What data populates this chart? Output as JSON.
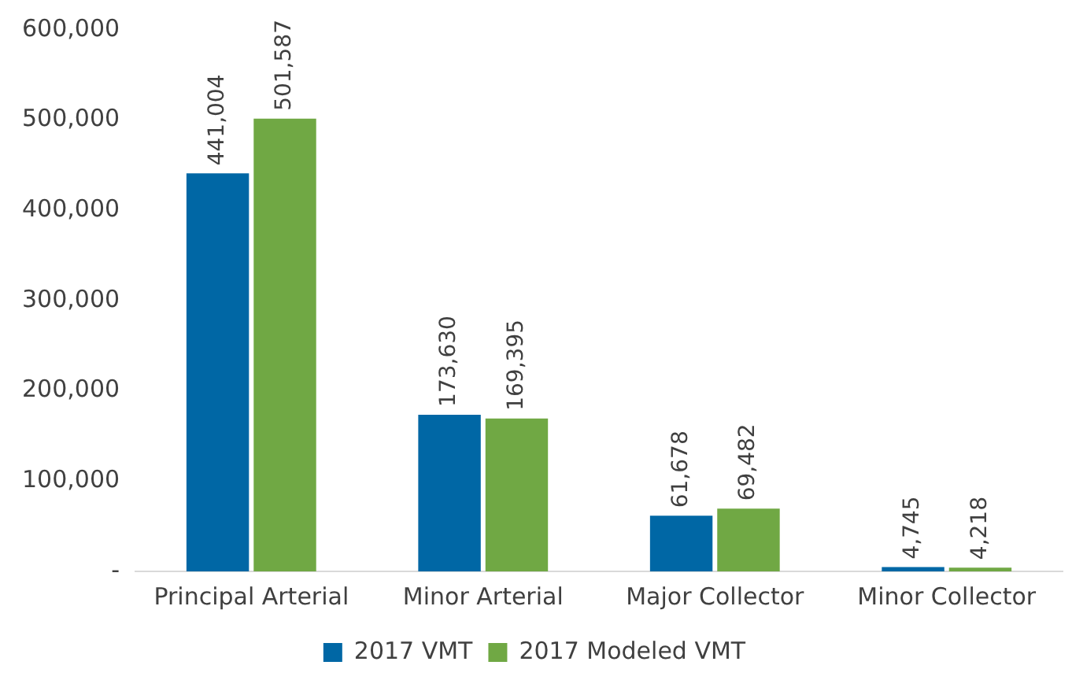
{
  "chart_data": {
    "type": "bar",
    "categories": [
      "Principal Arterial",
      "Minor Arterial",
      "Major Collector",
      "Minor Collector"
    ],
    "series": [
      {
        "name": "2017 VMT",
        "color": "#0067a5",
        "values": [
          441004,
          173630,
          61678,
          4745
        ],
        "value_labels": [
          "441,004",
          "173,630",
          "61,678",
          "4,745"
        ]
      },
      {
        "name": "2017 Modeled VMT",
        "color": "#70a844",
        "values": [
          501587,
          169395,
          69482,
          4218
        ],
        "value_labels": [
          "501,587",
          "169,395",
          "69,482",
          "4,218"
        ]
      }
    ],
    "ylim": [
      0,
      600000
    ],
    "yticks": [
      {
        "value": 0,
        "label": "-"
      },
      {
        "value": 100000,
        "label": "100,000"
      },
      {
        "value": 200000,
        "label": "200,000"
      },
      {
        "value": 300000,
        "label": "300,000"
      },
      {
        "value": 400000,
        "label": "400,000"
      },
      {
        "value": 500000,
        "label": "500,000"
      },
      {
        "value": 600000,
        "label": "600,000"
      }
    ],
    "grid": false,
    "legend": "bottom"
  }
}
